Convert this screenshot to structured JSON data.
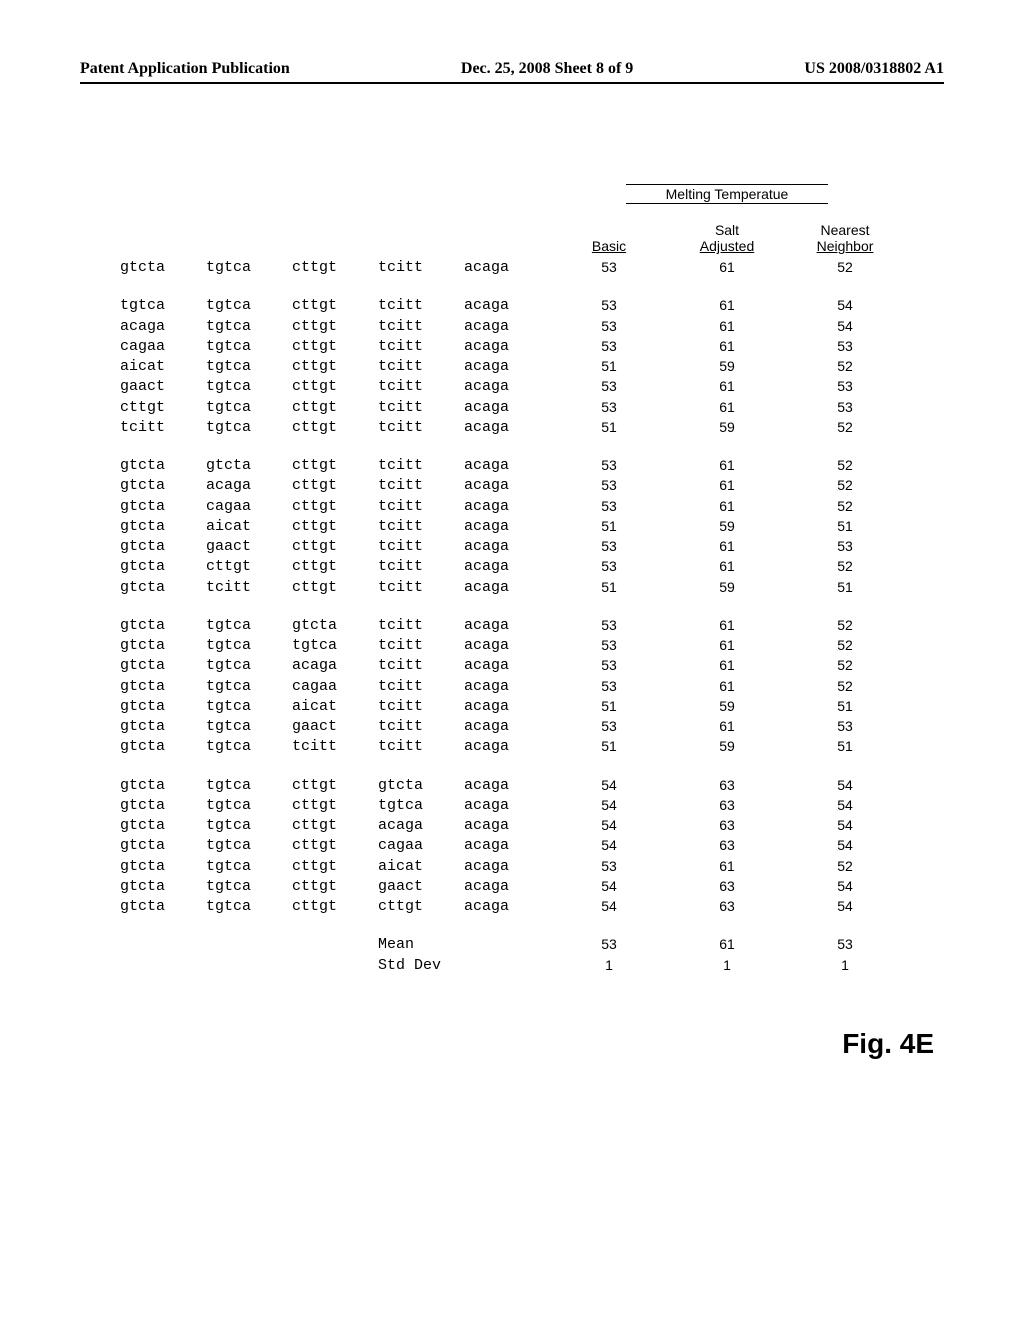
{
  "header": {
    "left": "Patent Application Publication",
    "center": "Dec. 25, 2008  Sheet 8 of 9",
    "right": "US 2008/0318802 A1"
  },
  "table": {
    "melting_label": "Melting Temperatue",
    "col_headers": {
      "basic": "Basic",
      "salt_top": "Salt",
      "salt_bot": "Adjusted",
      "nn_top": "Nearest",
      "nn_bot": "Neighbor"
    },
    "groups": [
      {
        "rows": [
          {
            "seq": [
              "gtcta",
              "tgtca",
              "cttgt",
              "tcitt",
              "acaga"
            ],
            "basic": "53",
            "salt": "61",
            "nn": "52"
          }
        ]
      },
      {
        "rows": [
          {
            "seq": [
              "tgtca",
              "tgtca",
              "cttgt",
              "tcitt",
              "acaga"
            ],
            "basic": "53",
            "salt": "61",
            "nn": "54"
          },
          {
            "seq": [
              "acaga",
              "tgtca",
              "cttgt",
              "tcitt",
              "acaga"
            ],
            "basic": "53",
            "salt": "61",
            "nn": "54"
          },
          {
            "seq": [
              "cagaa",
              "tgtca",
              "cttgt",
              "tcitt",
              "acaga"
            ],
            "basic": "53",
            "salt": "61",
            "nn": "53"
          },
          {
            "seq": [
              "aicat",
              "tgtca",
              "cttgt",
              "tcitt",
              "acaga"
            ],
            "basic": "51",
            "salt": "59",
            "nn": "52"
          },
          {
            "seq": [
              "gaact",
              "tgtca",
              "cttgt",
              "tcitt",
              "acaga"
            ],
            "basic": "53",
            "salt": "61",
            "nn": "53"
          },
          {
            "seq": [
              "cttgt",
              "tgtca",
              "cttgt",
              "tcitt",
              "acaga"
            ],
            "basic": "53",
            "salt": "61",
            "nn": "53"
          },
          {
            "seq": [
              "tcitt",
              "tgtca",
              "cttgt",
              "tcitt",
              "acaga"
            ],
            "basic": "51",
            "salt": "59",
            "nn": "52"
          }
        ]
      },
      {
        "rows": [
          {
            "seq": [
              "gtcta",
              "gtcta",
              "cttgt",
              "tcitt",
              "acaga"
            ],
            "basic": "53",
            "salt": "61",
            "nn": "52"
          },
          {
            "seq": [
              "gtcta",
              "acaga",
              "cttgt",
              "tcitt",
              "acaga"
            ],
            "basic": "53",
            "salt": "61",
            "nn": "52"
          },
          {
            "seq": [
              "gtcta",
              "cagaa",
              "cttgt",
              "tcitt",
              "acaga"
            ],
            "basic": "53",
            "salt": "61",
            "nn": "52"
          },
          {
            "seq": [
              "gtcta",
              "aicat",
              "cttgt",
              "tcitt",
              "acaga"
            ],
            "basic": "51",
            "salt": "59",
            "nn": "51"
          },
          {
            "seq": [
              "gtcta",
              "gaact",
              "cttgt",
              "tcitt",
              "acaga"
            ],
            "basic": "53",
            "salt": "61",
            "nn": "53"
          },
          {
            "seq": [
              "gtcta",
              "cttgt",
              "cttgt",
              "tcitt",
              "acaga"
            ],
            "basic": "53",
            "salt": "61",
            "nn": "52"
          },
          {
            "seq": [
              "gtcta",
              "tcitt",
              "cttgt",
              "tcitt",
              "acaga"
            ],
            "basic": "51",
            "salt": "59",
            "nn": "51"
          }
        ]
      },
      {
        "rows": [
          {
            "seq": [
              "gtcta",
              "tgtca",
              "gtcta",
              "tcitt",
              "acaga"
            ],
            "basic": "53",
            "salt": "61",
            "nn": "52"
          },
          {
            "seq": [
              "gtcta",
              "tgtca",
              "tgtca",
              "tcitt",
              "acaga"
            ],
            "basic": "53",
            "salt": "61",
            "nn": "52"
          },
          {
            "seq": [
              "gtcta",
              "tgtca",
              "acaga",
              "tcitt",
              "acaga"
            ],
            "basic": "53",
            "salt": "61",
            "nn": "52"
          },
          {
            "seq": [
              "gtcta",
              "tgtca",
              "cagaa",
              "tcitt",
              "acaga"
            ],
            "basic": "53",
            "salt": "61",
            "nn": "52"
          },
          {
            "seq": [
              "gtcta",
              "tgtca",
              "aicat",
              "tcitt",
              "acaga"
            ],
            "basic": "51",
            "salt": "59",
            "nn": "51"
          },
          {
            "seq": [
              "gtcta",
              "tgtca",
              "gaact",
              "tcitt",
              "acaga"
            ],
            "basic": "53",
            "salt": "61",
            "nn": "53"
          },
          {
            "seq": [
              "gtcta",
              "tgtca",
              "tcitt",
              "tcitt",
              "acaga"
            ],
            "basic": "51",
            "salt": "59",
            "nn": "51"
          }
        ]
      },
      {
        "rows": [
          {
            "seq": [
              "gtcta",
              "tgtca",
              "cttgt",
              "gtcta",
              "acaga"
            ],
            "basic": "54",
            "salt": "63",
            "nn": "54"
          },
          {
            "seq": [
              "gtcta",
              "tgtca",
              "cttgt",
              "tgtca",
              "acaga"
            ],
            "basic": "54",
            "salt": "63",
            "nn": "54"
          },
          {
            "seq": [
              "gtcta",
              "tgtca",
              "cttgt",
              "acaga",
              "acaga"
            ],
            "basic": "54",
            "salt": "63",
            "nn": "54"
          },
          {
            "seq": [
              "gtcta",
              "tgtca",
              "cttgt",
              "cagaa",
              "acaga"
            ],
            "basic": "54",
            "salt": "63",
            "nn": "54"
          },
          {
            "seq": [
              "gtcta",
              "tgtca",
              "cttgt",
              "aicat",
              "acaga"
            ],
            "basic": "53",
            "salt": "61",
            "nn": "52"
          },
          {
            "seq": [
              "gtcta",
              "tgtca",
              "cttgt",
              "gaact",
              "acaga"
            ],
            "basic": "54",
            "salt": "63",
            "nn": "54"
          },
          {
            "seq": [
              "gtcta",
              "tgtca",
              "cttgt",
              "cttgt",
              "acaga"
            ],
            "basic": "54",
            "salt": "63",
            "nn": "54"
          }
        ]
      }
    ],
    "stats": {
      "mean_label": "Mean",
      "std_label": "Std Dev",
      "mean": {
        "basic": "53",
        "salt": "61",
        "nn": "53"
      },
      "std": {
        "basic": "1",
        "salt": "1",
        "nn": "1"
      }
    }
  },
  "figure_label": "Fig. 4E"
}
